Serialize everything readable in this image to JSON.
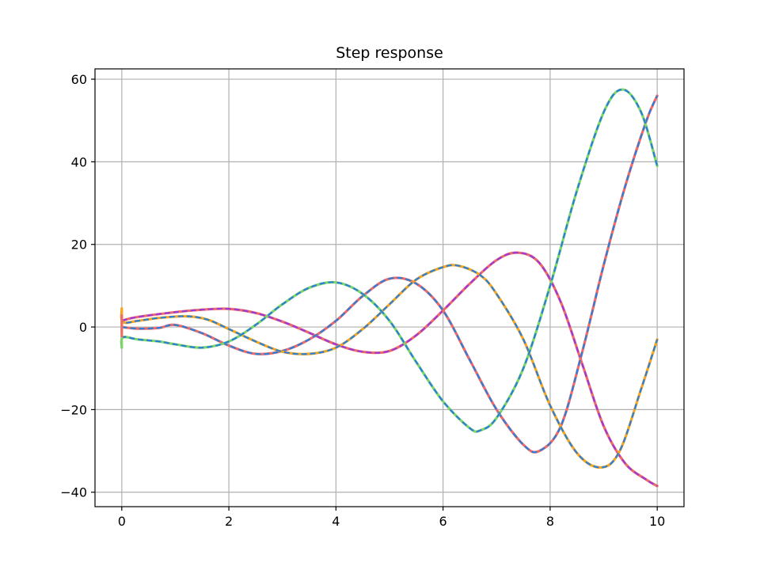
{
  "chart_data": {
    "type": "line",
    "title": "Step response",
    "xlabel": "",
    "ylabel": "",
    "xlim": [
      -0.5,
      10.5
    ],
    "ylim": [
      -43.5,
      62.5
    ],
    "xticks": [
      0,
      2,
      4,
      6,
      8,
      10
    ],
    "yticks": [
      -40,
      -20,
      0,
      20,
      40,
      60
    ],
    "xtick_labels": [
      "0",
      "2",
      "4",
      "6",
      "8",
      "10"
    ],
    "ytick_labels": [
      "−40",
      "−20",
      "0",
      "20",
      "40",
      "60"
    ],
    "grid": true,
    "legend": "none",
    "series": [
      {
        "color": "#f06a6a",
        "overlay_color": "#9b3ad6",
        "style": "solid with dashed overlay",
        "x": [
          0,
          0.2,
          0.5,
          1.0,
          1.5,
          2.0,
          2.5,
          3.0,
          3.5,
          4.0,
          4.5,
          5.0,
          5.5,
          6.0,
          6.5,
          7.0,
          7.4,
          7.8,
          8.2,
          8.6,
          9.0,
          9.4,
          9.8,
          10.0
        ],
        "y": [
          1.5,
          2.2,
          2.8,
          3.6,
          4.2,
          4.4,
          3.4,
          1.3,
          -1.4,
          -4.2,
          -6.0,
          -5.8,
          -2.0,
          4.0,
          10.5,
          16.2,
          18.0,
          15.5,
          6.0,
          -9.0,
          -24.0,
          -33.0,
          -37.0,
          -38.5
        ]
      },
      {
        "color": "#f06a6a",
        "overlay_color": "#2a7fd6",
        "style": "solid with dashed overlay",
        "x": [
          0,
          0.3,
          0.7,
          1.0,
          1.5,
          2.0,
          2.5,
          3.0,
          3.5,
          4.0,
          4.5,
          5.0,
          5.5,
          6.0,
          6.5,
          7.0,
          7.5,
          7.8,
          8.2,
          8.6,
          9.0,
          9.4,
          9.8,
          10.0
        ],
        "y": [
          0.0,
          -0.4,
          -0.2,
          0.5,
          -1.5,
          -4.5,
          -6.5,
          -5.8,
          -3.0,
          1.5,
          7.5,
          11.7,
          10.5,
          4.0,
          -8.0,
          -20.0,
          -28.5,
          -30.0,
          -24.0,
          -6.0,
          15.0,
          34.0,
          50.0,
          56.0
        ]
      },
      {
        "color": "#f5a623",
        "overlay_color": "#2a7fd6",
        "style": "solid with dashed overlay",
        "x": [
          0,
          0.02,
          0.3,
          0.7,
          1.2,
          1.6,
          2.0,
          2.5,
          3.0,
          3.5,
          4.0,
          4.5,
          5.0,
          5.5,
          6.0,
          6.3,
          6.7,
          7.0,
          7.5,
          8.0,
          8.5,
          8.95,
          9.3,
          9.7,
          10.0
        ],
        "y": [
          4.5,
          1.2,
          1.5,
          2.2,
          2.6,
          1.8,
          -0.5,
          -3.5,
          -6.0,
          -6.5,
          -5.0,
          -0.5,
          5.5,
          11.5,
          14.5,
          14.8,
          12.5,
          8.0,
          -3.0,
          -19.0,
          -30.5,
          -34.0,
          -30.0,
          -15.0,
          -3.0
        ]
      },
      {
        "color": "#7ed66a",
        "overlay_color": "#2a7fd6",
        "style": "solid with dashed overlay",
        "x": [
          0,
          0.02,
          0.3,
          0.7,
          1.0,
          1.5,
          2.0,
          2.5,
          3.0,
          3.5,
          4.0,
          4.5,
          5.0,
          5.5,
          6.0,
          6.5,
          6.7,
          7.0,
          7.5,
          8.0,
          8.5,
          9.0,
          9.35,
          9.7,
          10.0
        ],
        "y": [
          -5.0,
          -2.5,
          -3.0,
          -3.5,
          -4.2,
          -5.0,
          -3.5,
          0.5,
          5.5,
          9.5,
          10.8,
          8.0,
          1.5,
          -8.5,
          -18.0,
          -24.5,
          -25.0,
          -22.0,
          -10.0,
          10.0,
          33.0,
          52.0,
          57.5,
          52.0,
          39.0
        ]
      }
    ]
  }
}
